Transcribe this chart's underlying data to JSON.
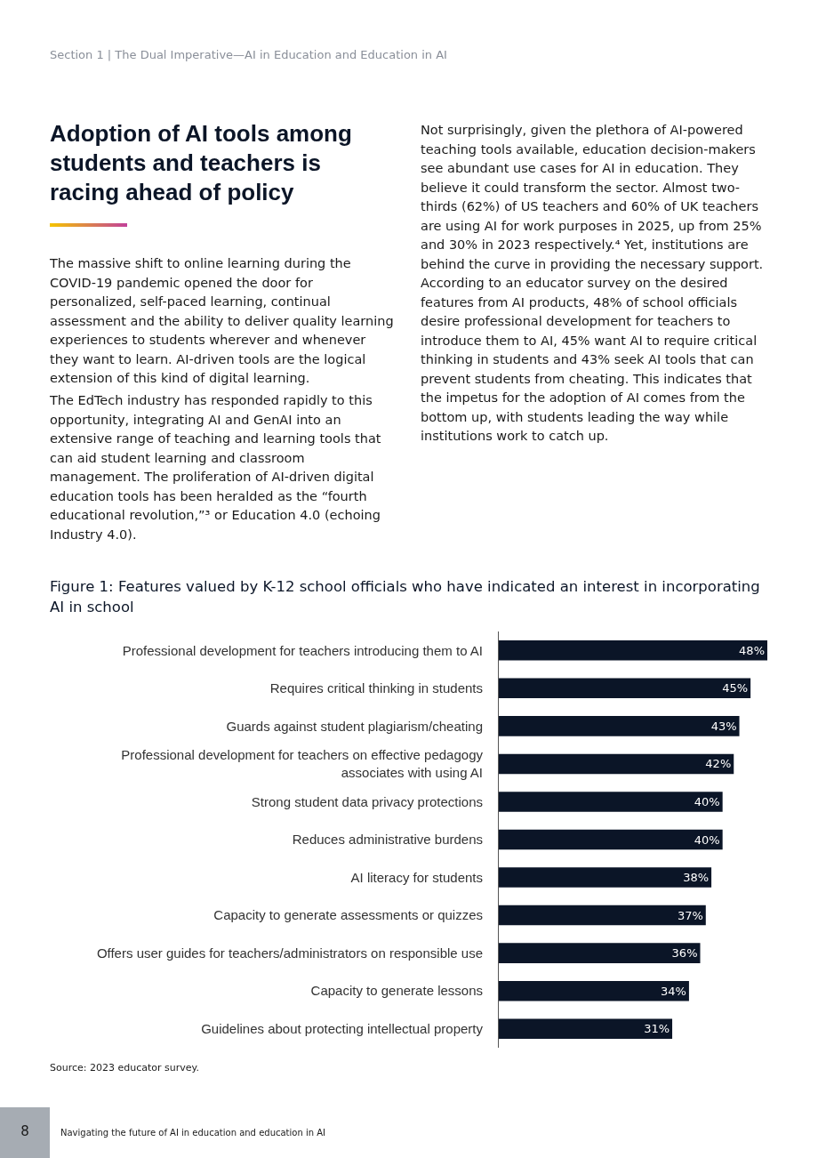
{
  "chart_data": {
    "type": "bar",
    "orientation": "horizontal",
    "title": "Figure 1: Features valued by K-12 school officials who have indicated an interest in incorporating AI in school",
    "categories": [
      "Professional development for teachers introducing them to AI",
      "Requires critical thinking in students",
      "Guards against student plagiarism/cheating",
      "Professional development for teachers on effective pedagogy associates with using AI",
      "Strong student data privacy protections",
      "Reduces administrative burdens",
      "AI literacy for students",
      "Capacity to generate assessments or quizzes",
      "Offers user guides for teachers/administrators on responsible use",
      "Capacity to generate lessons",
      "Guidelines about protecting intellectual property"
    ],
    "values": [
      48,
      45,
      43,
      42,
      40,
      40,
      38,
      37,
      36,
      34,
      31
    ],
    "value_labels": [
      "48%",
      "45%",
      "43%",
      "42%",
      "40%",
      "40%",
      "38%",
      "37%",
      "36%",
      "34%",
      "31%"
    ],
    "color": "#0b1527",
    "annotations": [
      "Section 1 | The Dual Imperative—AI in Education and Education in AI",
      "Adoption of AI tools among students and teachers is racing ahead of policy",
      "The massive shift to online learning during the COVID-19 pandemic opened the door for personalized, self-paced learning, continual assessment and the ability to deliver quality learning experiences to students wherever and whenever they want to learn. AI-driven tools are the logical extension of this kind of digital learning.",
      "The EdTech industry has responded rapidly to this opportunity, integrating AI and GenAI into an extensive range of teaching and learning tools that can aid student learning and classroom management. The proliferation of AI-driven digital education tools has been heralded as the “fourth educational revolution,”³ or Education 4.0 (echoing Industry 4.0).",
      "Not surprisingly, given the plethora of AI-powered teaching tools available, education decision-makers see abundant use cases for AI in education. They believe it could transform the sector. Almost two-thirds (62%) of US teachers and 60% of UK teachers are using AI for work purposes in 2025, up from 25% and 30% in 2023 respectively.⁴ Yet, institutions are behind the curve in providing the necessary support. According to an educator survey on the desired features from AI products, 48% of school officials desire professional development for teachers to introduce them to AI, 45% want AI to require critical thinking in students and 43% seek AI tools that can prevent students from cheating. This indicates that the impetus for the adoption of AI comes from the bottom up, with students leading the way while institutions work to catch up.",
      "Source: 2023 educator survey.",
      "8",
      "Navigating the future of AI in education and education in AI"
    ]
  }
}
